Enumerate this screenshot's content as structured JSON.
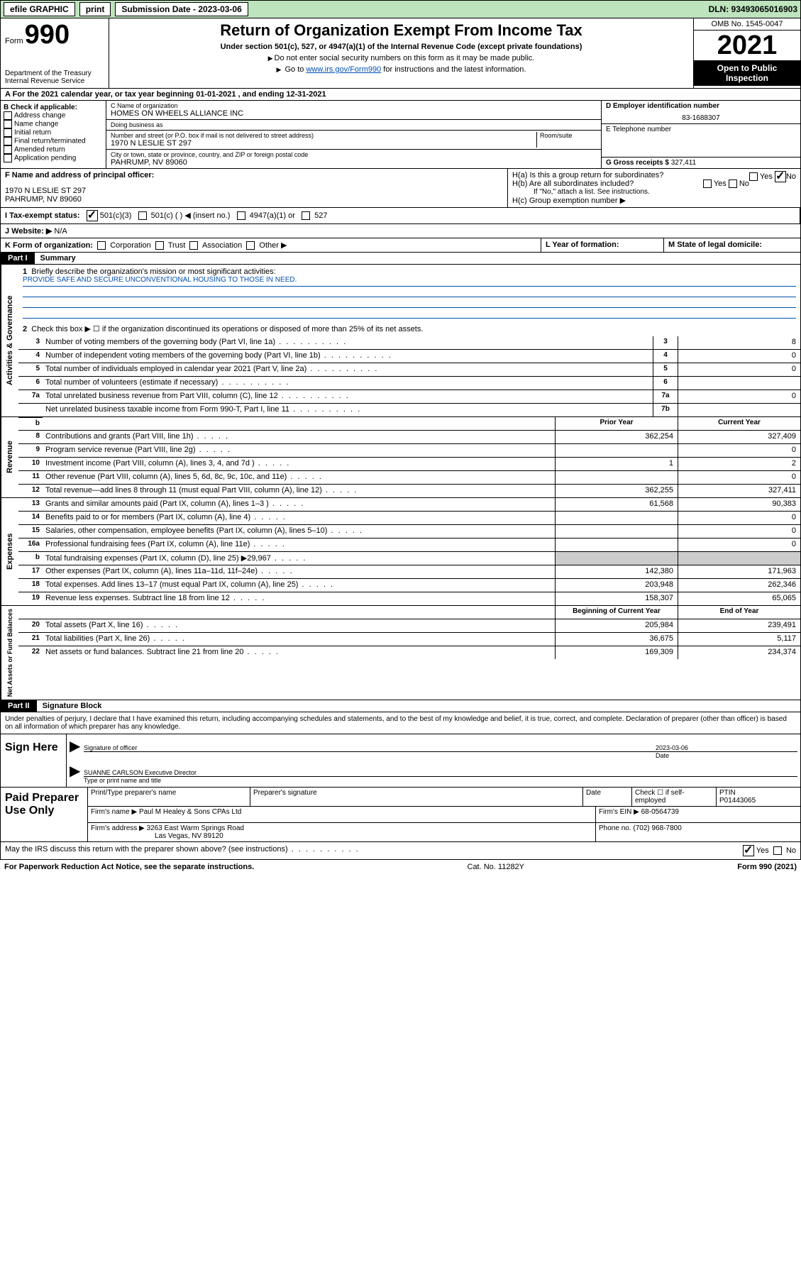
{
  "topbar": {
    "efile": "efile GRAPHIC",
    "print": "print",
    "submission": "Submission Date - 2023-03-06",
    "dln": "DLN: 93493065016903"
  },
  "header": {
    "form_word": "Form",
    "form_num": "990",
    "dept": "Department of the Treasury Internal Revenue Service",
    "title": "Return of Organization Exempt From Income Tax",
    "sub1": "Under section 501(c), 527, or 4947(a)(1) of the Internal Revenue Code (except private foundations)",
    "sub2a": "Do not enter social security numbers on this form as it may be made public.",
    "sub2b_pre": "Go to ",
    "sub2b_link": "www.irs.gov/Form990",
    "sub2b_post": " for instructions and the latest information.",
    "omb": "OMB No. 1545-0047",
    "year": "2021",
    "open": "Open to Public Inspection"
  },
  "rowA": "A For the 2021 calendar year, or tax year beginning 01-01-2021   , and ending 12-31-2021",
  "checkB": {
    "title": "B Check if applicable:",
    "opts": [
      "Address change",
      "Name change",
      "Initial return",
      "Final return/terminated",
      "Amended return",
      "Application pending"
    ]
  },
  "orgC": {
    "label": "C Name of organization",
    "name": "HOMES ON WHEELS ALLIANCE INC",
    "dba_label": "Doing business as",
    "dba": "",
    "street_label": "Number and street (or P.O. box if mail is not delivered to street address)",
    "room_label": "Room/suite",
    "street": "1970 N LESLIE ST 297",
    "city_label": "City or town, state or province, country, and ZIP or foreign postal code",
    "city": "PAHRUMP, NV  89060"
  },
  "colD": {
    "ein_label": "D Employer identification number",
    "ein": "83-1688307",
    "tel_label": "E Telephone number",
    "tel": "",
    "gross_label": "G Gross receipts $",
    "gross": "327,411"
  },
  "rowF": {
    "label": "F  Name and address of principal officer:",
    "addr1": "1970 N LESLIE ST 297",
    "addr2": "PAHRUMP, NV  89060"
  },
  "rowH": {
    "ha": "H(a)  Is this a group return for subordinates?",
    "hb": "H(b)  Are all subordinates included?",
    "hb_note": "If \"No,\" attach a list. See instructions.",
    "hc": "H(c)  Group exemption number ▶",
    "yes": "Yes",
    "no": "No"
  },
  "rowI": {
    "label": "I  Tax-exempt status:",
    "o1": "501(c)(3)",
    "o2": "501(c) (  ) ◀ (insert no.)",
    "o3": "4947(a)(1) or",
    "o4": "527"
  },
  "rowJ": {
    "label": "J  Website: ▶",
    "val": "N/A"
  },
  "rowK": {
    "label": "K Form of organization:",
    "o1": "Corporation",
    "o2": "Trust",
    "o3": "Association",
    "o4": "Other ▶"
  },
  "rowL": {
    "label": "L Year of formation:",
    "val": ""
  },
  "rowM": {
    "label": "M State of legal domicile:",
    "val": ""
  },
  "part1": {
    "label": "Part I",
    "title": "Summary",
    "q1": "Briefly describe the organization's mission or most significant activities:",
    "mission": "PROVIDE SAFE AND SECURE UNCONVENTIONAL HOUSING TO THOSE IN NEED.",
    "q2": "Check this box ▶ ☐  if the organization discontinued its operations or disposed of more than 25% of its net assets."
  },
  "side_labels": {
    "gov": "Activities & Governance",
    "rev": "Revenue",
    "exp": "Expenses",
    "net": "Net Assets or Fund Balances"
  },
  "gov_rows": [
    {
      "n": "3",
      "d": "Number of voting members of the governing body (Part VI, line 1a)",
      "box": "3",
      "v": "8"
    },
    {
      "n": "4",
      "d": "Number of independent voting members of the governing body (Part VI, line 1b)",
      "box": "4",
      "v": "0"
    },
    {
      "n": "5",
      "d": "Total number of individuals employed in calendar year 2021 (Part V, line 2a)",
      "box": "5",
      "v": "0"
    },
    {
      "n": "6",
      "d": "Total number of volunteers (estimate if necessary)",
      "box": "6",
      "v": ""
    },
    {
      "n": "7a",
      "d": "Total unrelated business revenue from Part VIII, column (C), line 12",
      "box": "7a",
      "v": "0"
    },
    {
      "n": "",
      "d": "Net unrelated business taxable income from Form 990-T, Part I, line 11",
      "box": "7b",
      "v": ""
    }
  ],
  "col_headers": {
    "prior": "Prior Year",
    "current": "Current Year",
    "begin": "Beginning of Current Year",
    "end": "End of Year"
  },
  "rev_rows": [
    {
      "n": "8",
      "d": "Contributions and grants (Part VIII, line 1h)",
      "p": "362,254",
      "c": "327,409"
    },
    {
      "n": "9",
      "d": "Program service revenue (Part VIII, line 2g)",
      "p": "",
      "c": "0"
    },
    {
      "n": "10",
      "d": "Investment income (Part VIII, column (A), lines 3, 4, and 7d )",
      "p": "1",
      "c": "2"
    },
    {
      "n": "11",
      "d": "Other revenue (Part VIII, column (A), lines 5, 6d, 8c, 9c, 10c, and 11e)",
      "p": "",
      "c": "0"
    },
    {
      "n": "12",
      "d": "Total revenue—add lines 8 through 11 (must equal Part VIII, column (A), line 12)",
      "p": "362,255",
      "c": "327,411"
    }
  ],
  "exp_rows": [
    {
      "n": "13",
      "d": "Grants and similar amounts paid (Part IX, column (A), lines 1–3 )",
      "p": "61,568",
      "c": "90,383"
    },
    {
      "n": "14",
      "d": "Benefits paid to or for members (Part IX, column (A), line 4)",
      "p": "",
      "c": "0"
    },
    {
      "n": "15",
      "d": "Salaries, other compensation, employee benefits (Part IX, column (A), lines 5–10)",
      "p": "",
      "c": "0"
    },
    {
      "n": "16a",
      "d": "Professional fundraising fees (Part IX, column (A), line 11e)",
      "p": "",
      "c": "0"
    },
    {
      "n": "b",
      "d": "Total fundraising expenses (Part IX, column (D), line 25) ▶29,967",
      "p": "SHADE",
      "c": "SHADE"
    },
    {
      "n": "17",
      "d": "Other expenses (Part IX, column (A), lines 11a–11d, 11f–24e)",
      "p": "142,380",
      "c": "171,963"
    },
    {
      "n": "18",
      "d": "Total expenses. Add lines 13–17 (must equal Part IX, column (A), line 25)",
      "p": "203,948",
      "c": "262,346"
    },
    {
      "n": "19",
      "d": "Revenue less expenses. Subtract line 18 from line 12",
      "p": "158,307",
      "c": "65,065"
    }
  ],
  "net_rows": [
    {
      "n": "20",
      "d": "Total assets (Part X, line 16)",
      "p": "205,984",
      "c": "239,491"
    },
    {
      "n": "21",
      "d": "Total liabilities (Part X, line 26)",
      "p": "36,675",
      "c": "5,117"
    },
    {
      "n": "22",
      "d": "Net assets or fund balances. Subtract line 21 from line 20",
      "p": "169,309",
      "c": "234,374"
    }
  ],
  "part2": {
    "label": "Part II",
    "title": "Signature Block",
    "decl": "Under penalties of perjury, I declare that I have examined this return, including accompanying schedules and statements, and to the best of my knowledge and belief, it is true, correct, and complete. Declaration of preparer (other than officer) is based on all information of which preparer has any knowledge.",
    "sign_here": "Sign Here",
    "sig_officer": "Signature of officer",
    "date_label": "Date",
    "date": "2023-03-06",
    "officer_name": "SUANNE CARLSON Executive Director",
    "type_name": "Type or print name and title"
  },
  "preparer": {
    "title": "Paid Preparer Use Only",
    "h_name": "Print/Type preparer's name",
    "h_sig": "Preparer's signature",
    "h_date": "Date",
    "h_check": "Check ☐ if self-employed",
    "h_ptin": "PTIN",
    "ptin": "P01443065",
    "firm_label": "Firm's name   ▶",
    "firm": "Paul M Healey & Sons CPAs Ltd",
    "ein_label": "Firm's EIN ▶",
    "ein": "68-0564739",
    "addr_label": "Firm's address ▶",
    "addr1": "3263 East Warm Springs Road",
    "addr2": "Las Vegas, NV  89120",
    "phone_label": "Phone no.",
    "phone": "(702) 968-7800"
  },
  "discuss": {
    "q": "May the IRS discuss this return with the preparer shown above? (see instructions)",
    "yes": "Yes",
    "no": "No"
  },
  "footer": {
    "left": "For Paperwork Reduction Act Notice, see the separate instructions.",
    "mid": "Cat. No. 11282Y",
    "right": "Form 990 (2021)"
  }
}
